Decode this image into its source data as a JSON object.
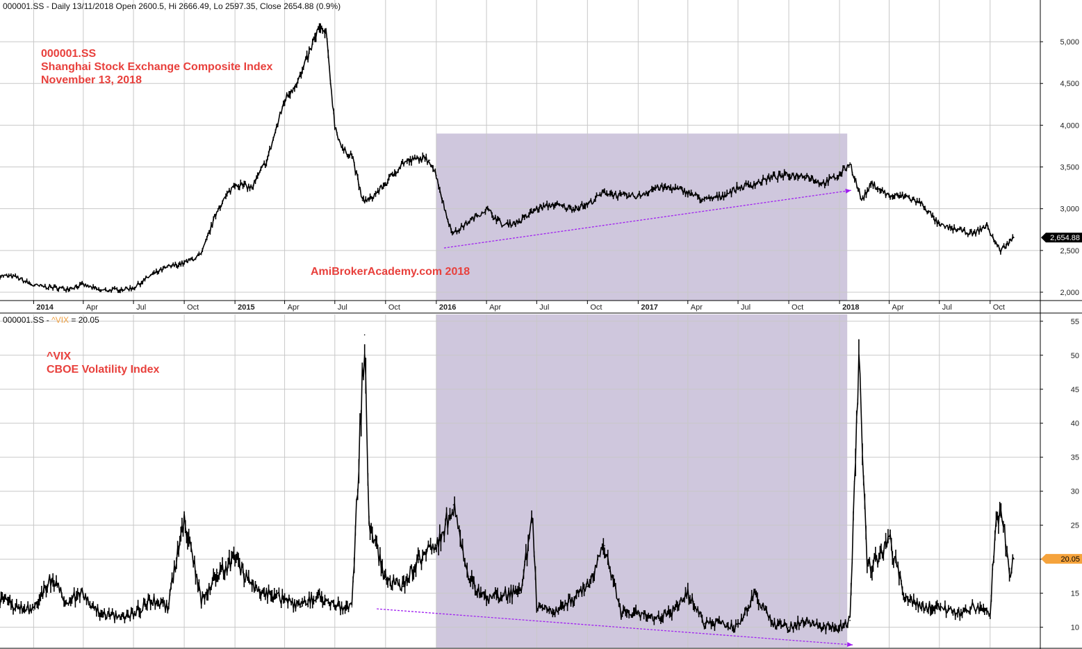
{
  "chart_data": [
    {
      "type": "line",
      "panel": "top",
      "header": "000001.SS - Daily 13/11/2018 Open 2600.5, Hi 2666.49, Lo 2597.35, Close 2654.88 (0.9%)",
      "annotations": [
        "000001.SS",
        "Shanghai Stock Exchange Composite Index",
        "November 13, 2018"
      ],
      "watermark": "AmiBrokerAcademy.com  2018",
      "ylim": [
        1900,
        5350
      ],
      "y_ticks": [
        2000,
        2500,
        3000,
        3500,
        4000,
        4500,
        5000
      ],
      "y_tick_labels": [
        "2,000",
        "2,500",
        "3,000",
        "3,500",
        "4,000",
        "4,500",
        "5,000"
      ],
      "last_value_label": "2,654.88",
      "last_value": 2654.88,
      "x_range": [
        "2013-11-01",
        "2018-12-31"
      ],
      "x_ticks": [
        {
          "date": "2014-01-01",
          "label": "2014",
          "bold": true
        },
        {
          "date": "2014-04-01",
          "label": "Apr",
          "bold": false
        },
        {
          "date": "2014-07-01",
          "label": "Jul",
          "bold": false
        },
        {
          "date": "2014-10-01",
          "label": "Oct",
          "bold": false
        },
        {
          "date": "2015-01-01",
          "label": "2015",
          "bold": true
        },
        {
          "date": "2015-04-01",
          "label": "Apr",
          "bold": false
        },
        {
          "date": "2015-07-01",
          "label": "Jul",
          "bold": false
        },
        {
          "date": "2015-10-01",
          "label": "Oct",
          "bold": false
        },
        {
          "date": "2016-01-01",
          "label": "2016",
          "bold": true
        },
        {
          "date": "2016-04-01",
          "label": "Apr",
          "bold": false
        },
        {
          "date": "2016-07-01",
          "label": "Jul",
          "bold": false
        },
        {
          "date": "2016-10-01",
          "label": "Oct",
          "bold": false
        },
        {
          "date": "2017-01-01",
          "label": "2017",
          "bold": true
        },
        {
          "date": "2017-04-01",
          "label": "Apr",
          "bold": false
        },
        {
          "date": "2017-07-01",
          "label": "Jul",
          "bold": false
        },
        {
          "date": "2017-10-01",
          "label": "Oct",
          "bold": false
        },
        {
          "date": "2018-01-01",
          "label": "2018",
          "bold": true
        },
        {
          "date": "2018-04-01",
          "label": "Apr",
          "bold": false
        },
        {
          "date": "2018-07-01",
          "label": "Jul",
          "bold": false
        },
        {
          "date": "2018-10-01",
          "label": "Oct",
          "bold": false
        }
      ],
      "shaded_range": {
        "x": [
          "2016-01-01",
          "2018-01-15"
        ],
        "y_top": 3900
      },
      "trend_arrow": {
        "from": [
          "2016-01-15",
          2530
        ],
        "to": [
          "2018-01-22",
          3220
        ]
      },
      "series": [
        {
          "points": [
            [
              "2013-11-01",
              2200
            ],
            [
              "2013-12-01",
              2180
            ],
            [
              "2014-01-01",
              2080
            ],
            [
              "2014-02-01",
              2060
            ],
            [
              "2014-03-01",
              2040
            ],
            [
              "2014-04-01",
              2090
            ],
            [
              "2014-05-01",
              2020
            ],
            [
              "2014-06-01",
              2030
            ],
            [
              "2014-07-01",
              2050
            ],
            [
              "2014-08-01",
              2200
            ],
            [
              "2014-09-01",
              2300
            ],
            [
              "2014-10-01",
              2350
            ],
            [
              "2014-11-01",
              2450
            ],
            [
              "2014-12-01",
              3000
            ],
            [
              "2015-01-01",
              3300
            ],
            [
              "2015-02-01",
              3250
            ],
            [
              "2015-03-01",
              3600
            ],
            [
              "2015-04-01",
              4300
            ],
            [
              "2015-05-01",
              4600
            ],
            [
              "2015-06-01",
              5150
            ],
            [
              "2015-06-15",
              5100
            ],
            [
              "2015-07-01",
              4000
            ],
            [
              "2015-07-15",
              3700
            ],
            [
              "2015-08-01",
              3650
            ],
            [
              "2015-08-20",
              3100
            ],
            [
              "2015-09-01",
              3100
            ],
            [
              "2015-10-01",
              3300
            ],
            [
              "2015-11-01",
              3550
            ],
            [
              "2015-12-01",
              3600
            ],
            [
              "2015-12-20",
              3580
            ],
            [
              "2016-01-01",
              3400
            ],
            [
              "2016-01-20",
              2900
            ],
            [
              "2016-02-01",
              2700
            ],
            [
              "2016-03-01",
              2850
            ],
            [
              "2016-04-01",
              3000
            ],
            [
              "2016-05-01",
              2800
            ],
            [
              "2016-06-01",
              2850
            ],
            [
              "2016-07-01",
              3000
            ],
            [
              "2016-08-01",
              3050
            ],
            [
              "2016-09-01",
              3000
            ],
            [
              "2016-10-01",
              3050
            ],
            [
              "2016-11-01",
              3200
            ],
            [
              "2016-12-01",
              3150
            ],
            [
              "2017-01-01",
              3150
            ],
            [
              "2017-02-01",
              3250
            ],
            [
              "2017-03-01",
              3250
            ],
            [
              "2017-04-01",
              3200
            ],
            [
              "2017-05-01",
              3100
            ],
            [
              "2017-06-01",
              3150
            ],
            [
              "2017-07-01",
              3250
            ],
            [
              "2017-08-01",
              3300
            ],
            [
              "2017-09-01",
              3380
            ],
            [
              "2017-10-01",
              3400
            ],
            [
              "2017-11-01",
              3400
            ],
            [
              "2017-12-01",
              3300
            ],
            [
              "2018-01-01",
              3400
            ],
            [
              "2018-01-20",
              3550
            ],
            [
              "2018-02-10",
              3100
            ],
            [
              "2018-03-01",
              3300
            ],
            [
              "2018-04-01",
              3150
            ],
            [
              "2018-05-01",
              3150
            ],
            [
              "2018-06-01",
              3050
            ],
            [
              "2018-07-01",
              2800
            ],
            [
              "2018-08-01",
              2750
            ],
            [
              "2018-09-01",
              2700
            ],
            [
              "2018-09-25",
              2800
            ],
            [
              "2018-10-10",
              2600
            ],
            [
              "2018-10-20",
              2500
            ],
            [
              "2018-11-13",
              2654.88
            ]
          ]
        }
      ]
    },
    {
      "type": "line",
      "panel": "bottom",
      "header_prefix": "000001.SS - ",
      "header_series": "^VIX",
      "header_suffix": " = 20.05",
      "annotations": [
        "^VIX",
        "CBOE Volatility Index"
      ],
      "ylim": [
        7,
        56
      ],
      "y_ticks": [
        10,
        15,
        20,
        25,
        30,
        35,
        40,
        45,
        50,
        55
      ],
      "y_tick_labels": [
        "10",
        "15",
        "20",
        "25",
        "30",
        "35",
        "40",
        "45",
        "50",
        "55"
      ],
      "last_value_label": "20.05",
      "last_value": 20.05,
      "shaded_range": {
        "x": [
          "2016-01-01",
          "2018-01-15"
        ]
      },
      "trend_arrow": {
        "from": [
          "2015-09-15",
          12.7
        ],
        "to": [
          "2018-01-25",
          7.4
        ]
      },
      "series": [
        {
          "points": [
            [
              "2013-11-01",
              14
            ],
            [
              "2013-12-01",
              13
            ],
            [
              "2014-01-01",
              12.5
            ],
            [
              "2014-02-01",
              17
            ],
            [
              "2014-03-01",
              14
            ],
            [
              "2014-04-01",
              15
            ],
            [
              "2014-05-01",
              12
            ],
            [
              "2014-06-01",
              11.5
            ],
            [
              "2014-07-01",
              12
            ],
            [
              "2014-08-01",
              14
            ],
            [
              "2014-09-01",
              13
            ],
            [
              "2014-10-01",
              26
            ],
            [
              "2014-11-01",
              14
            ],
            [
              "2014-12-01",
              18
            ],
            [
              "2015-01-01",
              20
            ],
            [
              "2015-02-01",
              16
            ],
            [
              "2015-03-01",
              15
            ],
            [
              "2015-04-01",
              14
            ],
            [
              "2015-05-01",
              13
            ],
            [
              "2015-06-01",
              15
            ],
            [
              "2015-07-01",
              13
            ],
            [
              "2015-08-01",
              13
            ],
            [
              "2015-08-24",
              53
            ],
            [
              "2015-09-01",
              25
            ],
            [
              "2015-10-01",
              17
            ],
            [
              "2015-11-01",
              16
            ],
            [
              "2015-12-01",
              20
            ],
            [
              "2016-01-01",
              22
            ],
            [
              "2016-02-01",
              28
            ],
            [
              "2016-03-01",
              17
            ],
            [
              "2016-04-01",
              14
            ],
            [
              "2016-05-01",
              15
            ],
            [
              "2016-06-01",
              15
            ],
            [
              "2016-06-24",
              26
            ],
            [
              "2016-07-01",
              13
            ],
            [
              "2016-08-01",
              12
            ],
            [
              "2016-09-01",
              14
            ],
            [
              "2016-10-01",
              16
            ],
            [
              "2016-11-01",
              22
            ],
            [
              "2016-12-01",
              12
            ],
            [
              "2017-01-01",
              12
            ],
            [
              "2017-02-01",
              11.5
            ],
            [
              "2017-03-01",
              12
            ],
            [
              "2017-04-01",
              15
            ],
            [
              "2017-05-01",
              10.5
            ],
            [
              "2017-06-01",
              10.5
            ],
            [
              "2017-07-01",
              10
            ],
            [
              "2017-08-01",
              15
            ],
            [
              "2017-09-01",
              10.5
            ],
            [
              "2017-10-01",
              10
            ],
            [
              "2017-11-01",
              11
            ],
            [
              "2017-12-01",
              10
            ],
            [
              "2018-01-01",
              10
            ],
            [
              "2018-01-20",
              11
            ],
            [
              "2018-02-05",
              50
            ],
            [
              "2018-02-20",
              19
            ],
            [
              "2018-03-01",
              19
            ],
            [
              "2018-04-01",
              23
            ],
            [
              "2018-05-01",
              14
            ],
            [
              "2018-06-01",
              13
            ],
            [
              "2018-07-01",
              13
            ],
            [
              "2018-08-01",
              12
            ],
            [
              "2018-09-01",
              13
            ],
            [
              "2018-10-01",
              12
            ],
            [
              "2018-10-12",
              27
            ],
            [
              "2018-10-25",
              25
            ],
            [
              "2018-11-05",
              18
            ],
            [
              "2018-11-13",
              20.05
            ]
          ]
        }
      ]
    }
  ],
  "colors": {
    "shade": "#cfc7dd",
    "arrow": "#a020f0",
    "grid": "#c8c8c8",
    "line": "#000000",
    "annotation": "#e8403c",
    "vix_header": "#f0a040",
    "badge_top_bg": "#000000",
    "badge_bottom_bg": "#f5a33c"
  }
}
